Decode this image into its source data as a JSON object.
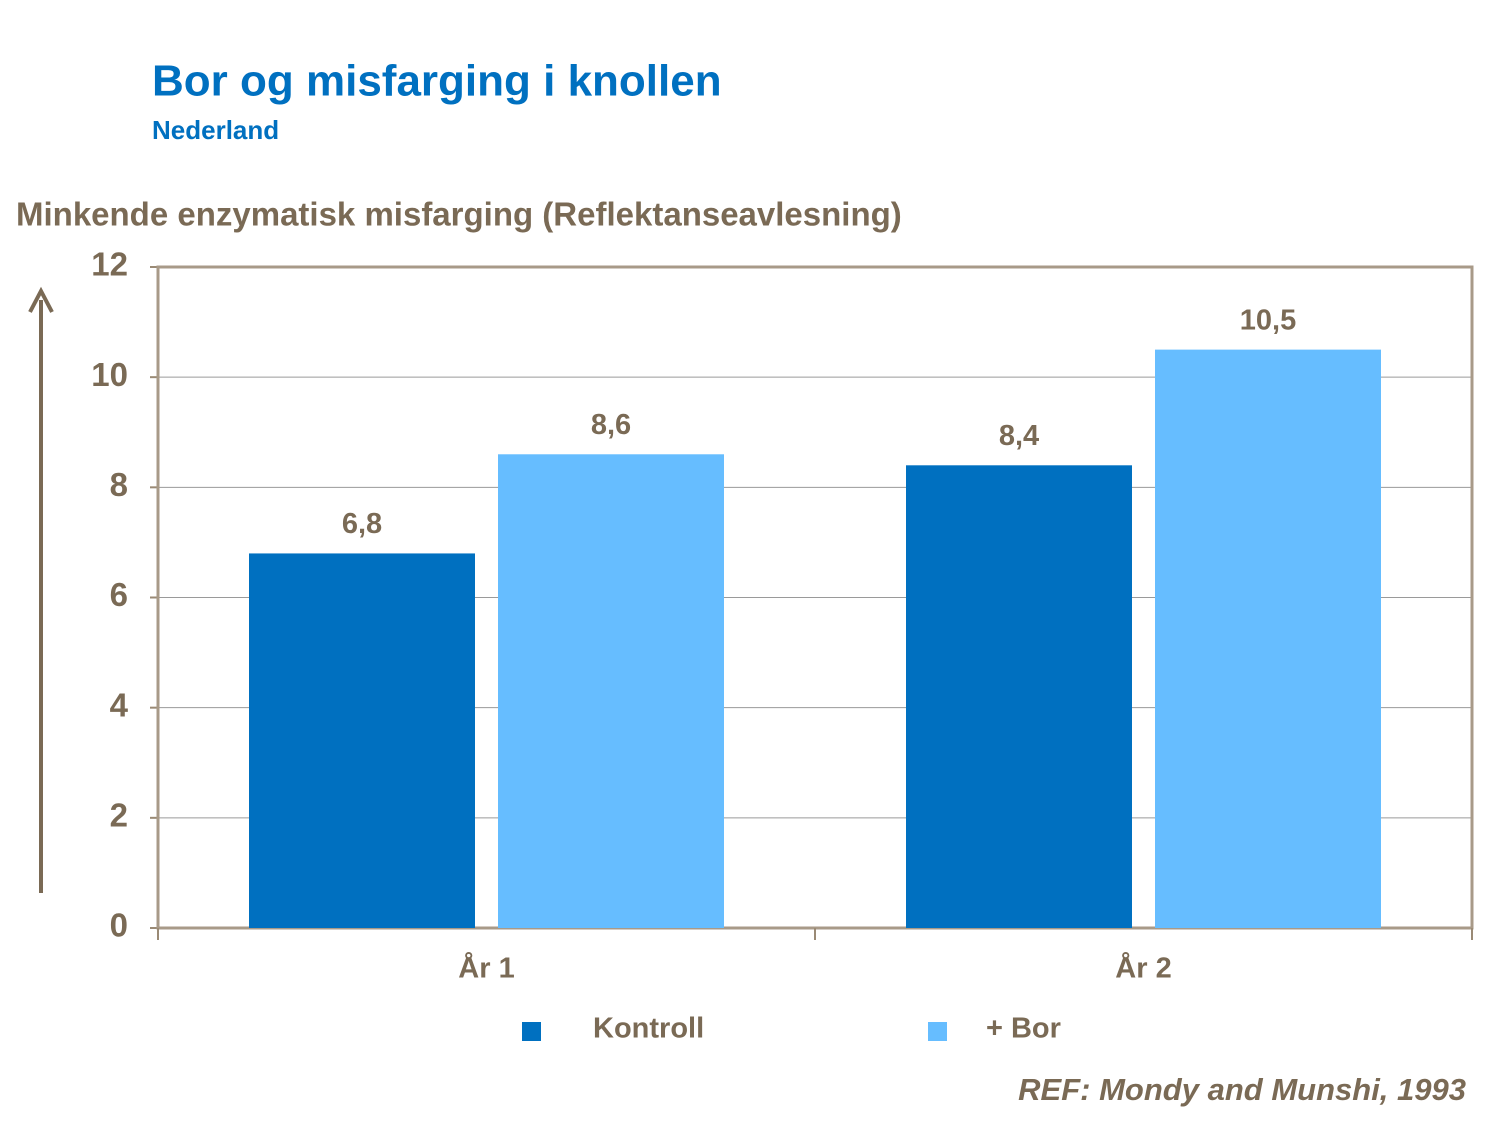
{
  "chart_data": {
    "type": "bar",
    "title": "Bor og misfarging i knollen",
    "subtitle": "Nederland",
    "y_label": "Minkende enzymatisk misfarging (Reflektanseavlesning)",
    "categories": [
      "År 1",
      "År 2"
    ],
    "series": [
      {
        "name": "Kontroll",
        "color": "#0070C0",
        "values": [
          6.8,
          8.4
        ],
        "value_labels": [
          "6,8",
          "8,4"
        ]
      },
      {
        "name": "+ Bor",
        "color": "#66BDFF",
        "values": [
          8.6,
          10.5
        ],
        "value_labels": [
          "8,6",
          "10,5"
        ]
      }
    ],
    "ylim": [
      0,
      12
    ],
    "yticks": [
      0,
      2,
      4,
      6,
      8,
      10,
      12
    ],
    "grid": true,
    "legend": "bottom",
    "note": "REF: Mondy and Munshi, 1993"
  }
}
